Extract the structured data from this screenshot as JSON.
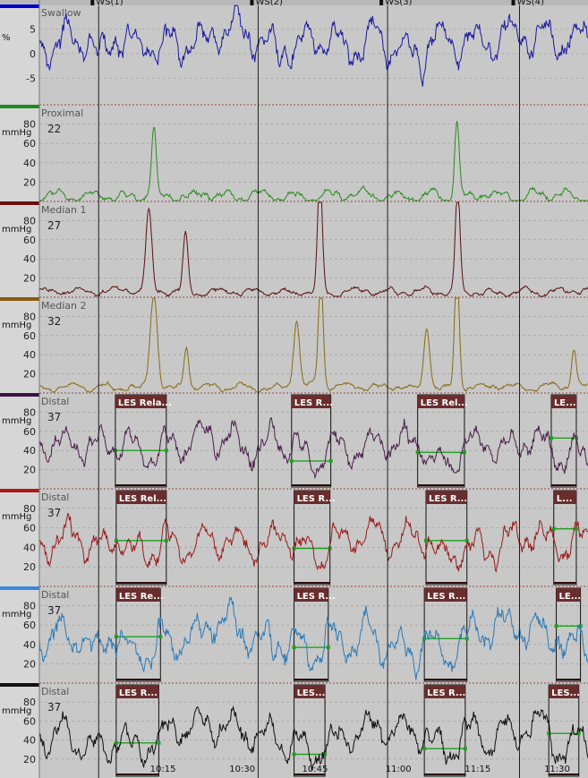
{
  "colors": {
    "background": "#c8c8c8",
    "axis_panel": "#d6d6d6",
    "grid": "#9a9a9a",
    "marker": "#1e1e1e",
    "les_box": "#6a2d2d",
    "les_label": "#ffffff",
    "les_line": "#1fa01f"
  },
  "swallow_markers": [
    {
      "label": "WS(1)",
      "t": 71
    },
    {
      "label": "WS(2)",
      "t": 262
    },
    {
      "label": "WS(3)",
      "t": 417
    },
    {
      "label": "WS(4)",
      "t": 575
    }
  ],
  "time_axis": {
    "t_range": [
      0,
      657
    ],
    "ticks": [
      {
        "t": 148,
        "label": "10:15"
      },
      {
        "t": 243,
        "label": "10:30"
      },
      {
        "t": 330,
        "label": "10:45"
      },
      {
        "t": 430,
        "label": "11:00"
      },
      {
        "t": 525,
        "label": "11:15"
      },
      {
        "t": 620,
        "label": "11:30"
      }
    ]
  },
  "chart_data": {
    "type": "line",
    "channels": [
      {
        "title": "Swallow",
        "unit": "%",
        "value_label": "",
        "color": "#1a1aa0",
        "bar_color": "#0000cc",
        "ymin": -10,
        "ymax": 10,
        "ticks": [
          5,
          0,
          -5
        ],
        "baseline": 2.5,
        "amp": 5,
        "seed": 3,
        "peaks": [],
        "les": []
      },
      {
        "title": "Proximal",
        "unit": "mmHg",
        "value_label": "22",
        "color": "#2a8a1e",
        "bar_color": "#1f8a1f",
        "ymin": 0,
        "ymax": 100,
        "ticks": [
          80,
          60,
          40,
          20
        ],
        "baseline": 6,
        "amp": 7,
        "seed": 11,
        "peaks": [
          {
            "t": 137,
            "v": 70,
            "w": 4
          },
          {
            "t": 500,
            "v": 78,
            "w": 4
          }
        ],
        "les": []
      },
      {
        "title": "Median 1",
        "unit": "mmHg",
        "value_label": "27",
        "color": "#5a1010",
        "bar_color": "#6b0f0f",
        "ymin": 0,
        "ymax": 100,
        "ticks": [
          80,
          60,
          40,
          20
        ],
        "baseline": 6,
        "amp": 5,
        "seed": 19,
        "peaks": [
          {
            "t": 131,
            "v": 85,
            "w": 5
          },
          {
            "t": 175,
            "v": 60,
            "w": 4
          },
          {
            "t": 336,
            "v": 120,
            "w": 4
          },
          {
            "t": 501,
            "v": 110,
            "w": 4
          }
        ],
        "les": []
      },
      {
        "title": "Median 2",
        "unit": "mmHg",
        "value_label": "32",
        "color": "#8a6a14",
        "bar_color": "#8a5a10",
        "ymin": 0,
        "ymax": 100,
        "ticks": [
          80,
          60,
          40,
          20
        ],
        "baseline": 6,
        "amp": 5,
        "seed": 27,
        "peaks": [
          {
            "t": 137,
            "v": 100,
            "w": 6
          },
          {
            "t": 176,
            "v": 45,
            "w": 4
          },
          {
            "t": 308,
            "v": 70,
            "w": 5
          },
          {
            "t": 337,
            "v": 115,
            "w": 4
          },
          {
            "t": 464,
            "v": 65,
            "w": 5
          },
          {
            "t": 500,
            "v": 125,
            "w": 4
          },
          {
            "t": 640,
            "v": 40,
            "w": 4
          }
        ],
        "les": []
      },
      {
        "title": "Distal",
        "unit": "mmHg",
        "value_label": "37",
        "color": "#4a1f4a",
        "bar_color": "#3a1540",
        "ymin": 0,
        "ymax": 100,
        "ticks": [
          80,
          60,
          40,
          20
        ],
        "baseline": 45,
        "amp": 22,
        "seed": 41,
        "peaks": [],
        "les": [
          {
            "t0": 91,
            "t1": 152,
            "v": 40,
            "label": "LES Rela..."
          },
          {
            "t0": 302,
            "t1": 349,
            "v": 29,
            "label": "LES R..."
          },
          {
            "t0": 453,
            "t1": 509,
            "v": 38,
            "label": "LES Rel..."
          },
          {
            "t0": 613,
            "t1": 643,
            "v": 53,
            "label": "LE..."
          }
        ]
      },
      {
        "title": "Distal",
        "unit": "mmHg",
        "value_label": "37",
        "color": "#9a1a1a",
        "bar_color": "#b01818",
        "ymin": 0,
        "ymax": 100,
        "ticks": [
          80,
          60,
          40,
          20
        ],
        "baseline": 48,
        "amp": 22,
        "seed": 53,
        "peaks": [],
        "les": [
          {
            "t0": 92,
            "t1": 152,
            "v": 47,
            "label": "LES Rel..."
          },
          {
            "t0": 305,
            "t1": 348,
            "v": 39,
            "label": "LES R..."
          },
          {
            "t0": 463,
            "t1": 512,
            "v": 47,
            "label": "LES R..."
          },
          {
            "t0": 616,
            "t1": 643,
            "v": 59,
            "label": "L..."
          }
        ]
      },
      {
        "title": "Distal",
        "unit": "mmHg",
        "value_label": "37",
        "color": "#2a7ab8",
        "bar_color": "#3a88d8",
        "ymin": 0,
        "ymax": 100,
        "ticks": [
          80,
          60,
          40,
          20
        ],
        "baseline": 48,
        "amp": 26,
        "seed": 67,
        "peaks": [],
        "les": [
          {
            "t0": 92,
            "t1": 145,
            "v": 48,
            "label": "LES Re..."
          },
          {
            "t0": 305,
            "t1": 346,
            "v": 37,
            "label": "LES R..."
          },
          {
            "t0": 461,
            "t1": 512,
            "v": 46,
            "label": "LES R..."
          },
          {
            "t0": 619,
            "t1": 648,
            "v": 59,
            "label": "LE..."
          }
        ]
      },
      {
        "title": "Distal",
        "unit": "mmHg",
        "value_label": "37",
        "color": "#111111",
        "bar_color": "#111111",
        "ymin": 0,
        "ymax": 100,
        "ticks": [
          80,
          60,
          40,
          20
        ],
        "baseline": 45,
        "amp": 24,
        "seed": 79,
        "peaks": [],
        "les": [
          {
            "t0": 92,
            "t1": 143,
            "v": 37,
            "label": "LES R..."
          },
          {
            "t0": 305,
            "t1": 342,
            "v": 25,
            "label": "LES..."
          },
          {
            "t0": 461,
            "t1": 510,
            "v": 31,
            "label": "LES R..."
          },
          {
            "t0": 610,
            "t1": 646,
            "v": 47,
            "label": "LES..."
          }
        ]
      }
    ]
  }
}
